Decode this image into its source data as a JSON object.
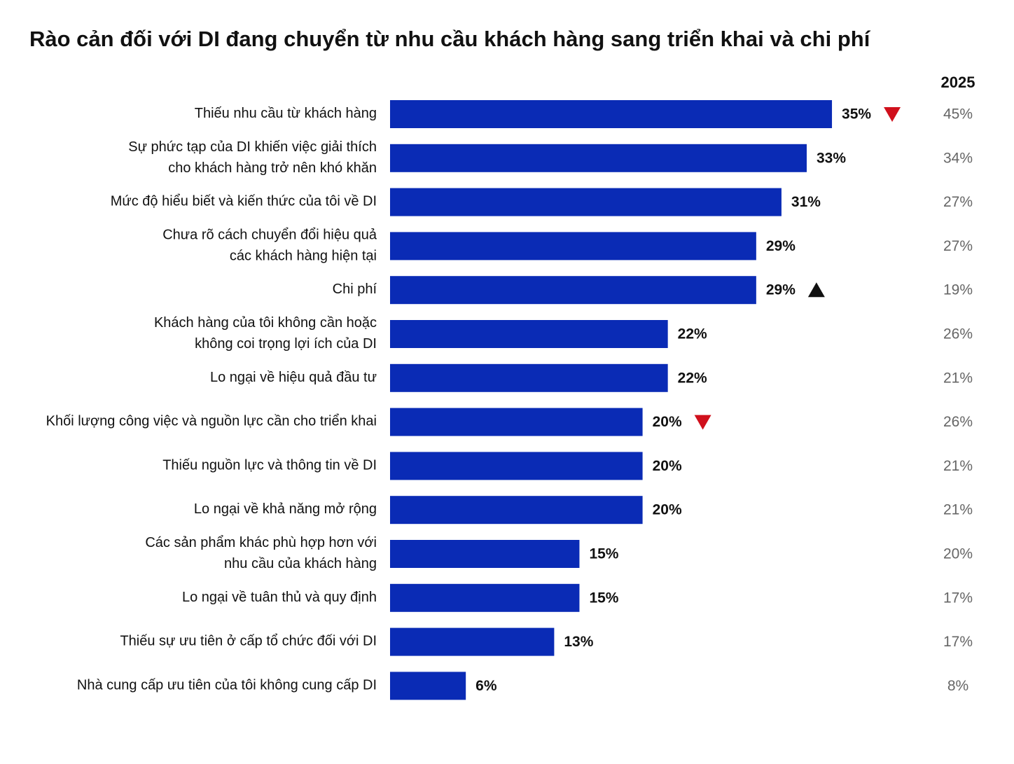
{
  "chart_data": {
    "type": "hbar",
    "title": "Rào cản đối với DI đang chuyển từ nhu cầu khách hàng sang triển khai và chi phí",
    "categories": [
      "Thiếu nhu cầu từ khách hàng",
      "Sự phức tạp của DI khiến việc giải thích\ncho khách hàng trở nên khó khăn",
      "Mức độ hiểu biết và kiến thức của tôi về DI",
      "Chưa rõ cách chuyển đổi hiệu quả\ncác khách hàng hiện tại",
      "Chi phí",
      "Khách hàng của tôi không cần hoặc\nkhông coi trọng lợi ích của DI",
      "Lo ngại về hiệu quả đầu tư",
      "Khối lượng công việc và nguồn lực cần cho triển khai",
      "Thiếu nguồn lực và thông tin về DI",
      "Lo ngại về khả năng mở rộng",
      "Các sản phẩm khác phù hợp hơn với\nnhu cầu của khách hàng",
      "Lo ngại về tuân thủ và quy định",
      "Thiếu sự ưu tiên ở cấp tổ chức đối với DI",
      "Nhà cung cấp ưu tiên của tôi không cung cấp DI"
    ],
    "series": [
      {
        "color": "#0a2bb5",
        "values": [
          35,
          33,
          31,
          29,
          29,
          22,
          22,
          20,
          20,
          20,
          15,
          15,
          13,
          6
        ],
        "value_labels": [
          "35%",
          "33%",
          "31%",
          "29%",
          "29%",
          "22%",
          "22%",
          "20%",
          "20%",
          "20%",
          "15%",
          "15%",
          "13%",
          "6%"
        ]
      },
      {
        "name": "2025",
        "color": "#666666",
        "values": [
          45,
          34,
          27,
          27,
          19,
          26,
          21,
          26,
          21,
          21,
          20,
          17,
          17,
          8
        ],
        "value_labels": [
          "45%",
          "34%",
          "27%",
          "27%",
          "19%",
          "26%",
          "21%",
          "26%",
          "21%",
          "21%",
          "20%",
          "17%",
          "17%",
          "8%"
        ]
      }
    ],
    "change": [
      "down",
      null,
      null,
      null,
      "up",
      null,
      null,
      "down",
      null,
      null,
      null,
      null,
      null,
      null
    ],
    "change_colors": {
      "down": "#d0101c",
      "up": "#111111"
    }
  }
}
